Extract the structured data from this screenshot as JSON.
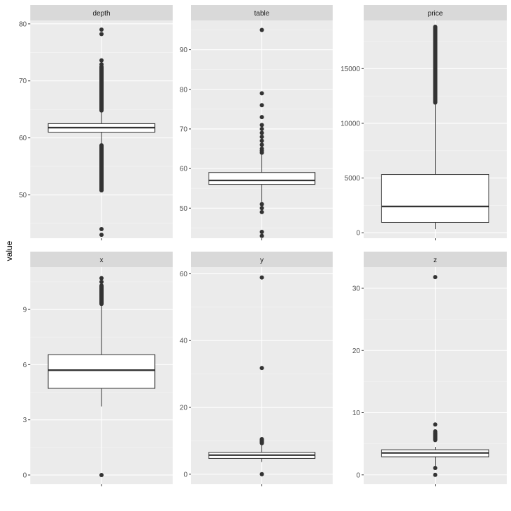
{
  "chart_data": {
    "type": "boxplot",
    "ylabel": "value",
    "facets": [
      {
        "strip": "depth",
        "ylim": [
          42.4,
          80.6
        ],
        "yticks": [
          50,
          60,
          70,
          80
        ],
        "box": {
          "q1": 61.0,
          "median": 61.8,
          "q3": 62.5,
          "whisker_low": 58.8,
          "whisker_high": 64.7
        },
        "outlier_clusters": [
          [
            64.8,
            72.5
          ],
          [
            50.8,
            58.7
          ]
        ],
        "outliers": [
          79.0,
          78.2,
          73.6,
          72.9,
          51.0,
          50.8,
          44.0,
          43.0
        ]
      },
      {
        "strip": "table",
        "ylim": [
          42.4,
          97.4
        ],
        "yticks": [
          50,
          60,
          70,
          80,
          90
        ],
        "box": {
          "q1": 56.0,
          "median": 57.0,
          "q3": 59.0,
          "whisker_low": 51.6,
          "whisker_high": 63.5
        },
        "outlier_clusters": [],
        "outliers": [
          95.0,
          79.0,
          76.0,
          73.0,
          71.0,
          70.0,
          69.0,
          68.0,
          67.0,
          66.0,
          65.0,
          64.5,
          64.0,
          51.0,
          50.0,
          49.0,
          44.0,
          43.0
        ]
      },
      {
        "strip": "price",
        "ylim": [
          -500,
          19400
        ],
        "yticks": [
          0,
          5000,
          10000,
          15000
        ],
        "box": {
          "q1": 950,
          "median": 2401,
          "q3": 5324,
          "whisker_low": 326,
          "whisker_high": 11886
        },
        "outlier_clusters": [
          [
            11900,
            18823
          ]
        ],
        "outliers": []
      },
      {
        "strip": "x",
        "ylim": [
          -0.5,
          11.3
        ],
        "yticks": [
          0,
          3,
          6,
          9
        ],
        "box": {
          "q1": 4.71,
          "median": 5.7,
          "q3": 6.54,
          "whisker_low": 3.73,
          "whisker_high": 9.28
        },
        "outlier_clusters": [
          [
            9.3,
            10.3
          ]
        ],
        "outliers": [
          10.7,
          10.5,
          10.2,
          0.0
        ]
      },
      {
        "strip": "y",
        "ylim": [
          -3,
          62
        ],
        "yticks": [
          0,
          20,
          40,
          60
        ],
        "box": {
          "q1": 4.72,
          "median": 5.71,
          "q3": 6.54,
          "whisker_low": 3.68,
          "whisker_high": 9.26
        },
        "outlier_clusters": [
          [
            9.3,
            10.5
          ]
        ],
        "outliers": [
          58.9,
          31.8,
          0.0
        ]
      },
      {
        "strip": "z",
        "ylim": [
          -1.5,
          33.4
        ],
        "yticks": [
          0,
          10,
          20,
          30
        ],
        "box": {
          "q1": 2.91,
          "median": 3.53,
          "q3": 4.04,
          "whisker_low": 1.07,
          "whisker_high": 4.5
        },
        "outlier_clusters": [
          [
            5.6,
            6.8
          ]
        ],
        "outliers": [
          31.8,
          8.1,
          7.0,
          1.1,
          0.0
        ]
      }
    ]
  }
}
